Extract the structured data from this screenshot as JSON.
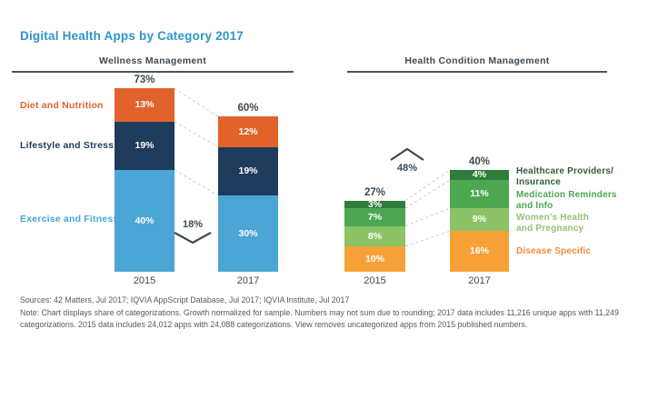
{
  "page": {
    "title": "Digital Health Apps by Category 2017"
  },
  "colors": {
    "title_blue": "#2E96C9",
    "axis_text": "#3E4A52",
    "connector_gray": "#CCCCCC",
    "footer_gray": "#55595D"
  },
  "chart_data": [
    {
      "type": "bar",
      "stacked": true,
      "title": "Wellness Management",
      "categories": [
        "2015",
        "2017"
      ],
      "totals": [
        "73%",
        "60%"
      ],
      "change": {
        "label": "18%",
        "direction": "down"
      },
      "value_suffix": "%",
      "ylim": [
        0,
        80
      ],
      "grid": false,
      "series": [
        {
          "name": "Exercise and Fitness",
          "values": [
            40,
            30
          ],
          "color": "#4BA5D5"
        },
        {
          "name": "Lifestyle and Stress",
          "values": [
            19,
            19
          ],
          "color": "#1F3B5C"
        },
        {
          "name": "Diet and Nutrition",
          "values": [
            13,
            12
          ],
          "color": "#E2622C"
        }
      ]
    },
    {
      "type": "bar",
      "stacked": true,
      "title": "Health Condition Management",
      "categories": [
        "2015",
        "2017"
      ],
      "totals": [
        "27%",
        "40%"
      ],
      "change": {
        "label": "48%",
        "direction": "up"
      },
      "value_suffix": "%",
      "ylim": [
        0,
        80
      ],
      "grid": false,
      "series": [
        {
          "name": "Disease Specific",
          "values": [
            10,
            16
          ],
          "color": "#F5A137",
          "legend_lines": [
            "Disease Specific",
            ""
          ]
        },
        {
          "name": "Women's Health and Pregnancy",
          "values": [
            8,
            9
          ],
          "color": "#8CC366",
          "legend_lines": [
            "Women's Health",
            "and Pregnancy"
          ]
        },
        {
          "name": "Medication Reminders and Info",
          "values": [
            7,
            11
          ],
          "color": "#4DA652",
          "legend_lines": [
            "Medication Reminders",
            "and Info"
          ]
        },
        {
          "name": "Healthcare Providers/Insurance",
          "values": [
            3,
            4
          ],
          "color": "#2E7D3C",
          "legend_lines": [
            "Healthcare Providers/",
            "Insurance"
          ]
        }
      ]
    }
  ],
  "footer": {
    "sources": "Sources: 42 Matters, Jul 2017; IQVIA AppScript Database, Jul 2017; IQVIA Institute, Jul 2017",
    "note": "Note: Chart displays share of categorizations. Growth normalized for sample. Numbers may not sum due to rounding; 2017 data includes 11,216 unique apps with 11,249 categorizations. 2015 data includes 24,012 apps with 24,088 categorizations. View removes uncategorized apps from 2015 published numbers."
  }
}
